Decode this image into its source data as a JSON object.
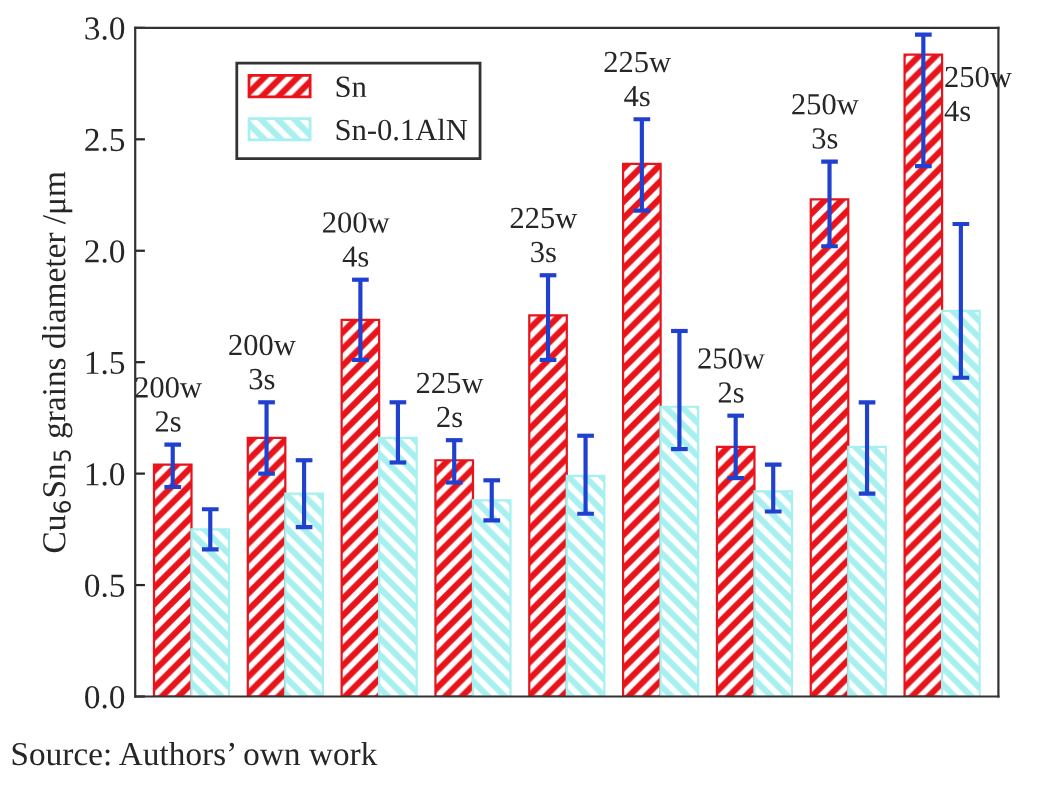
{
  "chart_data": {
    "type": "bar",
    "ylabel": "Cu$_{6}$Sn$_{5}$ grains diameter /μm",
    "categories": [
      null,
      null,
      null,
      null,
      null,
      null,
      null,
      null,
      null
    ],
    "series": [
      {
        "name": "Sn",
        "color": "#e8141c",
        "values": [
          1.04,
          1.16,
          1.69,
          1.06,
          1.71,
          2.39,
          1.12,
          2.23,
          2.88
        ],
        "errors": [
          [
            0.94,
            1.13
          ],
          [
            1.0,
            1.32
          ],
          [
            1.51,
            1.87
          ],
          [
            0.96,
            1.15
          ],
          [
            1.51,
            1.89
          ],
          [
            2.18,
            2.59
          ],
          [
            0.98,
            1.26
          ],
          [
            2.02,
            2.4
          ],
          [
            2.38,
            2.97
          ]
        ]
      },
      {
        "name": "Sn-0.1AlN",
        "color": "#a8f0f0",
        "values": [
          0.75,
          0.91,
          1.16,
          0.88,
          0.99,
          1.3,
          0.92,
          1.12,
          1.73
        ],
        "errors": [
          [
            0.66,
            0.84
          ],
          [
            0.76,
            1.06
          ],
          [
            1.05,
            1.32
          ],
          [
            0.79,
            0.97
          ],
          [
            0.82,
            1.17
          ],
          [
            1.11,
            1.64
          ],
          [
            0.83,
            1.04
          ],
          [
            0.91,
            1.32
          ],
          [
            1.43,
            2.12
          ]
        ]
      }
    ],
    "ylim": [
      0,
      3.0
    ],
    "yticks": [
      {
        "value": 0,
        "label": "0.0"
      },
      {
        "value": 0.5,
        "label": "0.5"
      },
      {
        "value": 1.0,
        "label": "1.0"
      },
      {
        "value": 1.5,
        "label": "1.5"
      },
      {
        "value": 2.0,
        "label": "2.0"
      },
      {
        "value": 2.5,
        "label": "2.5"
      },
      {
        "value": 3.0,
        "label": "3.0"
      }
    ],
    "annotations": [
      "200w\n2s",
      "200w\n3s",
      "200w\n4s",
      "225w\n2s",
      "225w\n3s",
      "225w\n4s",
      "250w\n2s",
      "250w\n3s",
      "250w\n4s",
      "Source: Authors’ own work"
    ],
    "grid": false,
    "legend": "top left"
  }
}
